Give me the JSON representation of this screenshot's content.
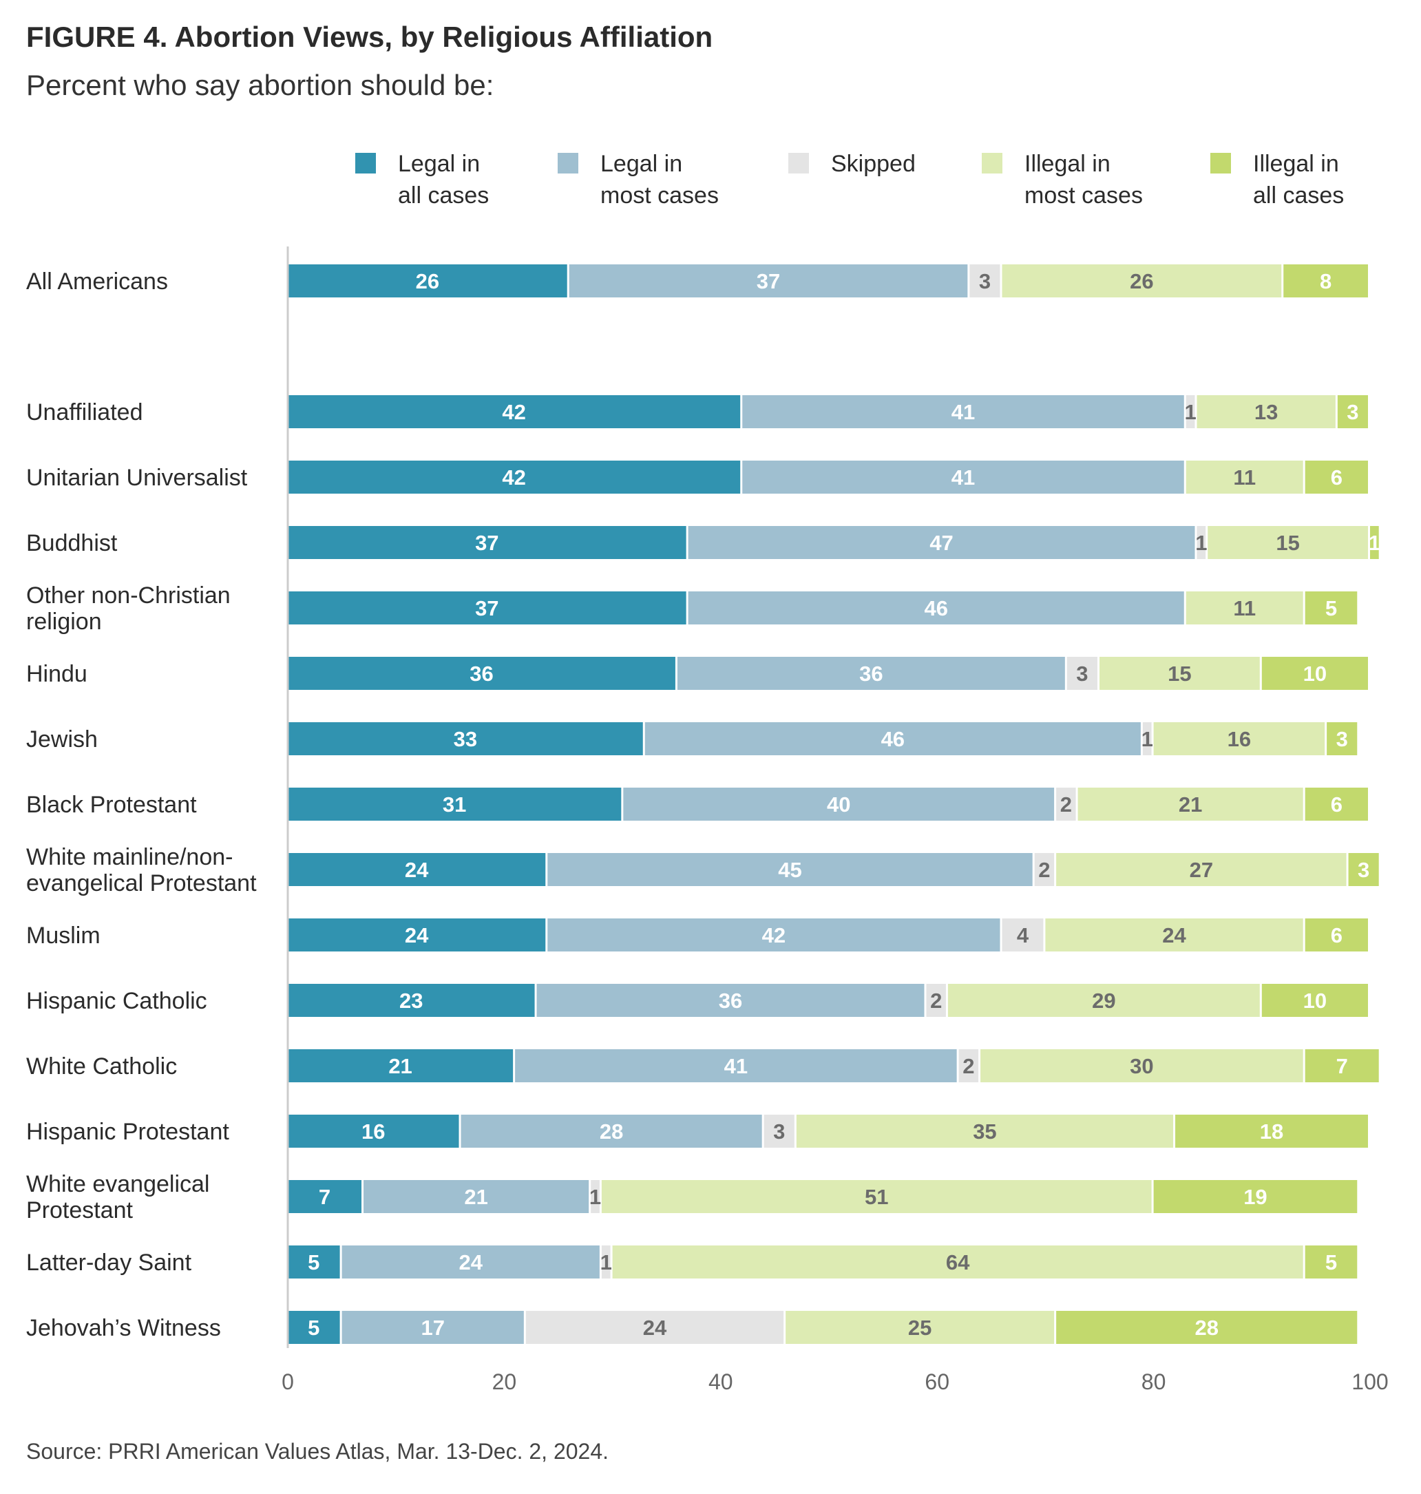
{
  "title": "FIGURE 4. Abortion Views, by Religious Affiliation",
  "subtitle": "Percent who say abortion should be:",
  "source": "Source: PRRI American Values Atlas, Mar. 13-Dec. 2, 2024.",
  "chart_data": {
    "type": "bar",
    "orientation": "horizontal",
    "stacked": true,
    "title": "FIGURE 4. Abortion Views, by Religious Affiliation",
    "subtitle": "Percent who say abortion should be:",
    "xlim": [
      0,
      100
    ],
    "xticks": [
      0,
      20,
      40,
      60,
      80,
      100
    ],
    "grid": false,
    "legend_position": "top",
    "categories": [
      "All Americans",
      "Unaffiliated",
      "Unitarian Universalist",
      "Buddhist",
      "Other non-Christian religion",
      "Hindu",
      "Jewish",
      "Black Protestant",
      "White mainline/non-evangelical Protestant",
      "Muslim",
      "Hispanic Catholic",
      "White Catholic",
      "Hispanic Protestant",
      "White evangelical Protestant",
      "Latter-day Saint",
      "Jehovah’s Witness"
    ],
    "category_lines": [
      [
        "All Americans"
      ],
      [
        "Unaffiliated"
      ],
      [
        "Unitarian Universalist"
      ],
      [
        "Buddhist"
      ],
      [
        "Other non-Christian",
        "religion"
      ],
      [
        "Hindu"
      ],
      [
        "Jewish"
      ],
      [
        "Black Protestant"
      ],
      [
        "White mainline/non-",
        "evangelical Protestant"
      ],
      [
        "Muslim"
      ],
      [
        "Hispanic Catholic"
      ],
      [
        "White Catholic"
      ],
      [
        "Hispanic Protestant"
      ],
      [
        "White evangelical",
        "Protestant"
      ],
      [
        "Latter-day Saint"
      ],
      [
        "Jehovah’s Witness"
      ]
    ],
    "series": [
      {
        "name": "Legal in all cases",
        "legend_lines": [
          "Legal in",
          "all cases"
        ],
        "color": "#3193b0",
        "label_color": "#ffffff",
        "values": [
          26,
          42,
          42,
          37,
          37,
          36,
          33,
          31,
          24,
          24,
          23,
          21,
          16,
          7,
          5,
          5
        ]
      },
      {
        "name": "Legal in most cases",
        "legend_lines": [
          "Legal in",
          "most cases"
        ],
        "color": "#9fbfd0",
        "label_color": "#ffffff",
        "values": [
          37,
          41,
          41,
          47,
          46,
          36,
          46,
          40,
          45,
          42,
          36,
          41,
          28,
          21,
          24,
          17
        ]
      },
      {
        "name": "Skipped",
        "legend_lines": [
          "Skipped"
        ],
        "color": "#e4e4e4",
        "label_color": "#6b6b6b",
        "values": [
          3,
          1,
          0,
          1,
          0,
          3,
          1,
          2,
          2,
          4,
          2,
          2,
          3,
          1,
          1,
          24
        ]
      },
      {
        "name": "Illegal in most cases",
        "legend_lines": [
          "Illegal in",
          "most cases"
        ],
        "color": "#ddebb3",
        "label_color": "#6b6b6b",
        "values": [
          26,
          13,
          11,
          15,
          11,
          15,
          16,
          21,
          27,
          24,
          29,
          30,
          35,
          51,
          64,
          25
        ]
      },
      {
        "name": "Illegal in all cases",
        "legend_lines": [
          "Illegal in",
          "all cases"
        ],
        "color": "#c2d96d",
        "label_color": "#ffffff",
        "values": [
          8,
          3,
          6,
          1,
          5,
          10,
          3,
          6,
          3,
          6,
          10,
          7,
          18,
          19,
          5,
          28
        ]
      }
    ]
  }
}
